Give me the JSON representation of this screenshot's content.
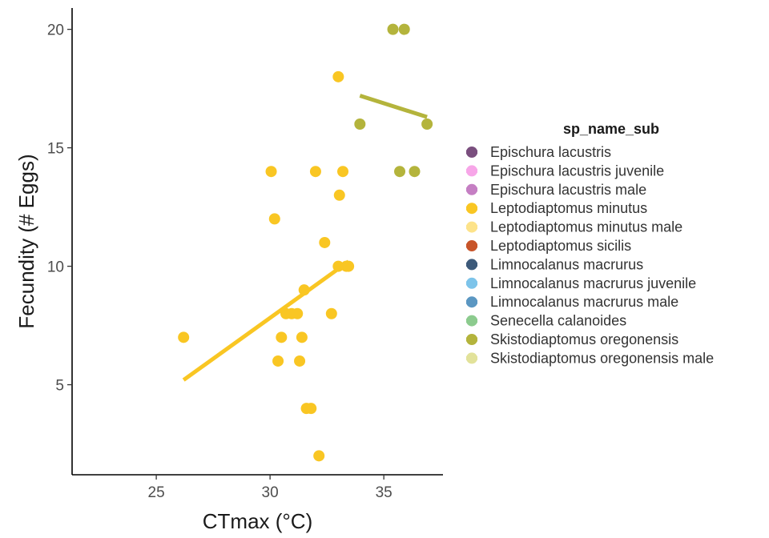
{
  "chart_data": {
    "type": "scatter",
    "title": "",
    "xlabel": "CTmax (°C)",
    "ylabel": "Fecundity (# Eggs)",
    "xlim": [
      21.3,
      37.6
    ],
    "ylim": [
      1.2,
      20.9
    ],
    "x_ticks": [
      25,
      30,
      35
    ],
    "y_ticks": [
      5,
      10,
      15,
      20
    ],
    "grid": false,
    "legend_position": "right",
    "legend": {
      "title": "sp_name_sub",
      "entries": [
        {
          "name": "Epischura lacustris",
          "color": "#7a4f7e"
        },
        {
          "name": "Epischura lacustris juvenile",
          "color": "#f7a6e8"
        },
        {
          "name": "Epischura lacustris male",
          "color": "#c57fc3"
        },
        {
          "name": "Leptodiaptomus minutus",
          "color": "#f9c623"
        },
        {
          "name": "Leptodiaptomus minutus male",
          "color": "#fde38a"
        },
        {
          "name": "Leptodiaptomus sicilis",
          "color": "#c8552a"
        },
        {
          "name": "Limnocalanus macrurus",
          "color": "#3d5a7a"
        },
        {
          "name": "Limnocalanus macrurus juvenile",
          "color": "#7dc4ea"
        },
        {
          "name": "Limnocalanus macrurus male",
          "color": "#5b97c2"
        },
        {
          "name": "Senecella calanoides",
          "color": "#8ccb8e"
        },
        {
          "name": "Skistodiaptomus oregonensis",
          "color": "#b4b43c"
        },
        {
          "name": "Skistodiaptomus oregonensis male",
          "color": "#e2e29a"
        }
      ]
    },
    "series": [
      {
        "name": "Leptodiaptomus minutus",
        "color": "#f9c623",
        "points": [
          {
            "x": 26.2,
            "y": 7
          },
          {
            "x": 30.05,
            "y": 14
          },
          {
            "x": 30.2,
            "y": 12
          },
          {
            "x": 30.35,
            "y": 6
          },
          {
            "x": 30.5,
            "y": 7
          },
          {
            "x": 30.7,
            "y": 8
          },
          {
            "x": 30.95,
            "y": 8
          },
          {
            "x": 31.2,
            "y": 8
          },
          {
            "x": 31.3,
            "y": 6
          },
          {
            "x": 31.4,
            "y": 7
          },
          {
            "x": 31.5,
            "y": 9
          },
          {
            "x": 31.6,
            "y": 4
          },
          {
            "x": 31.8,
            "y": 4
          },
          {
            "x": 32.0,
            "y": 14
          },
          {
            "x": 32.15,
            "y": 2
          },
          {
            "x": 32.4,
            "y": 11
          },
          {
            "x": 32.7,
            "y": 8
          },
          {
            "x": 33.0,
            "y": 18
          },
          {
            "x": 33.0,
            "y": 10
          },
          {
            "x": 33.05,
            "y": 13
          },
          {
            "x": 33.2,
            "y": 14
          },
          {
            "x": 33.35,
            "y": 10
          },
          {
            "x": 33.45,
            "y": 10
          }
        ],
        "fit": {
          "x": [
            26.2,
            33.45
          ],
          "y": [
            5.2,
            10.2
          ]
        }
      },
      {
        "name": "Skistodiaptomus oregonensis",
        "color": "#b4b43c",
        "points": [
          {
            "x": 33.95,
            "y": 16
          },
          {
            "x": 35.4,
            "y": 20
          },
          {
            "x": 35.7,
            "y": 14
          },
          {
            "x": 35.9,
            "y": 20
          },
          {
            "x": 36.35,
            "y": 14
          },
          {
            "x": 36.9,
            "y": 16
          }
        ],
        "fit": {
          "x": [
            33.95,
            36.9
          ],
          "y": [
            17.2,
            16.3
          ]
        }
      }
    ]
  }
}
